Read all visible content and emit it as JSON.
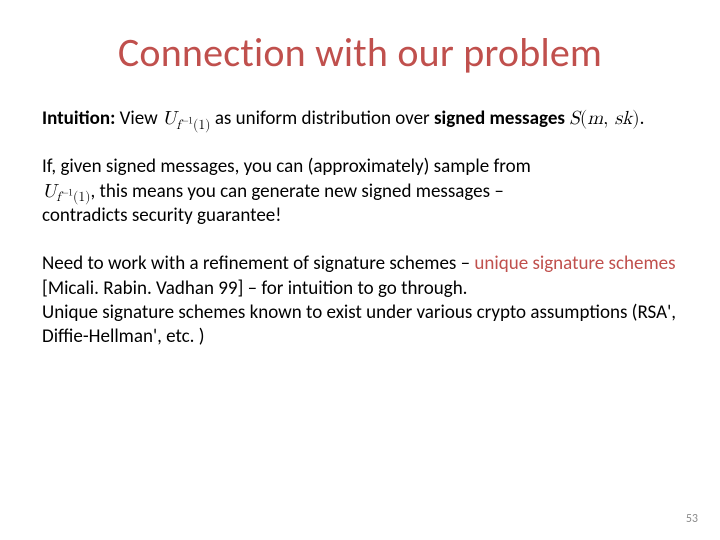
{
  "title": "Connection with our problem",
  "colors": {
    "title": "#c0504d",
    "accent": "#c0504d",
    "body_text": "#000000",
    "background": "#ffffff",
    "page_num": "#8c8c8c"
  },
  "fontsizes": {
    "title": 40,
    "body": 19,
    "page_num": 12
  },
  "para1": {
    "lead": "Intuition:",
    "before_formula1": "View",
    "formula1": "U_{f^{-1}(1)}",
    "after_formula1": "as uniform distribution over",
    "bold1": "signed messages",
    "formula2": "S(m, sk)",
    "period": "."
  },
  "para2": {
    "line1": "If, given signed messages, you can (approximately) sample from",
    "formula": "U_{f^{-1}(1)}",
    "after_formula": ", this means you can generate new signed messages –",
    "line3": "contradicts security guarantee!"
  },
  "para3": {
    "before_accent1": "Need to work with a refinement of signature schemes –",
    "accent1": "unique signature schemes",
    "after_accent1": "[Micali. Rabin. Vadhan 99] – for intuition to go through.",
    "line3": "Unique signature schemes known to exist under various crypto assumptions (RSA', Diffie-Hellman', etc. )"
  },
  "page_number": "53"
}
